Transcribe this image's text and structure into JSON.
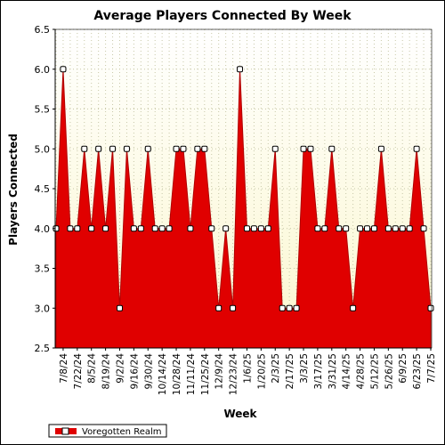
{
  "chart_data": {
    "type": "area",
    "title": "Average Players Connected By Week",
    "xlabel": "Week",
    "ylabel": "Players Connected",
    "ylim": [
      2.5,
      6.5
    ],
    "yticks": [
      "2.5",
      "3.0",
      "3.5",
      "4.0",
      "4.5",
      "5.0",
      "5.5",
      "6.0",
      "6.5"
    ],
    "x_tick_labels": [
      "7/8/24",
      "7/22/24",
      "8/5/24",
      "8/19/24",
      "9/2/24",
      "9/16/24",
      "9/30/24",
      "10/14/24",
      "10/28/24",
      "11/11/24",
      "11/25/24",
      "12/9/24",
      "12/23/24",
      "1/6/25",
      "1/20/25",
      "2/3/25",
      "2/17/25",
      "3/3/25",
      "3/17/25",
      "3/31/25",
      "4/14/25",
      "4/28/25",
      "5/12/25",
      "5/26/25",
      "6/9/25",
      "6/23/25",
      "7/7/25"
    ],
    "grid": true,
    "legend_position": "bottom-left",
    "colors": {
      "series": "#e00000",
      "marker_fill": "#ffffff",
      "plot_bg_top": "#ffffff",
      "plot_bg_bottom": "#fbf7cf"
    },
    "series": [
      {
        "name": "Voregotten Realm",
        "x": [
          "7/1/24",
          "7/8/24",
          "7/15/24",
          "7/22/24",
          "7/29/24",
          "8/5/24",
          "8/12/24",
          "8/19/24",
          "8/26/24",
          "9/2/24",
          "9/9/24",
          "9/16/24",
          "9/23/24",
          "9/30/24",
          "10/7/24",
          "10/14/24",
          "10/21/24",
          "10/28/24",
          "11/4/24",
          "11/11/24",
          "11/18/24",
          "11/25/24",
          "12/2/24",
          "12/9/24",
          "12/16/24",
          "12/23/24",
          "12/30/24",
          "1/6/25",
          "1/13/25",
          "1/20/25",
          "1/27/25",
          "2/3/25",
          "2/10/25",
          "2/17/25",
          "2/24/25",
          "3/3/25",
          "3/10/25",
          "3/17/25",
          "3/24/25",
          "3/31/25",
          "4/7/25",
          "4/14/25",
          "4/21/25",
          "4/28/25",
          "5/5/25",
          "5/12/25",
          "5/19/25",
          "5/26/25",
          "6/2/25",
          "6/9/25",
          "6/16/25",
          "6/23/25",
          "6/30/25",
          "7/7/25"
        ],
        "values": [
          4.0,
          6.0,
          4.0,
          4.0,
          5.0,
          4.0,
          5.0,
          4.0,
          5.0,
          3.0,
          5.0,
          4.0,
          4.0,
          5.0,
          4.0,
          4.0,
          4.0,
          5.0,
          5.0,
          4.0,
          5.0,
          5.0,
          4.0,
          3.0,
          4.0,
          3.0,
          6.0,
          4.0,
          4.0,
          4.0,
          4.0,
          5.0,
          3.0,
          3.0,
          3.0,
          5.0,
          5.0,
          4.0,
          4.0,
          5.0,
          4.0,
          4.0,
          3.0,
          4.0,
          4.0,
          4.0,
          5.0,
          4.0,
          4.0,
          4.0,
          4.0,
          5.0,
          4.0,
          3.0
        ]
      }
    ]
  }
}
